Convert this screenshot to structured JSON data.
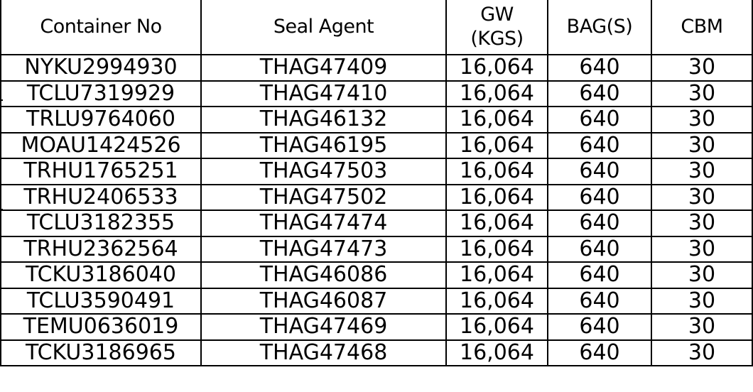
{
  "table": {
    "headers": {
      "container_no": "Container No",
      "seal_agent": "Seal Agent",
      "gw_line1": "GW",
      "gw_line2": "(KGS)",
      "bags": "BAG(S)",
      "cbm": "CBM"
    },
    "rows": [
      [
        "NYKU2994930",
        "THAG47409",
        "16,064",
        "640",
        "30"
      ],
      [
        "TCLU7319929",
        "THAG47410",
        "16,064",
        "640",
        "30"
      ],
      [
        "TRLU9764060",
        "THAG46132",
        "16,064",
        "640",
        "30"
      ],
      [
        "MOAU1424526",
        "THAG46195",
        "16,064",
        "640",
        "30"
      ],
      [
        "TRHU1765251",
        "THAG47503",
        "16,064",
        "640",
        "30"
      ],
      [
        "TRHU2406533",
        "THAG47502",
        "16,064",
        "640",
        "30"
      ],
      [
        "TCLU3182355",
        "THAG47474",
        "16,064",
        "640",
        "30"
      ],
      [
        "TRHU2362564",
        "THAG47473",
        "16,064",
        "640",
        "30"
      ],
      [
        "TCKU3186040",
        "THAG46086",
        "16,064",
        "640",
        "30"
      ],
      [
        "TCLU3590491",
        "THAG46087",
        "16,064",
        "640",
        "30"
      ],
      [
        "TEMU0636019",
        "THAG47469",
        "16,064",
        "640",
        "30"
      ],
      [
        "TCKU3186965",
        "THAG47468",
        "16,064",
        "640",
        "30"
      ]
    ]
  }
}
